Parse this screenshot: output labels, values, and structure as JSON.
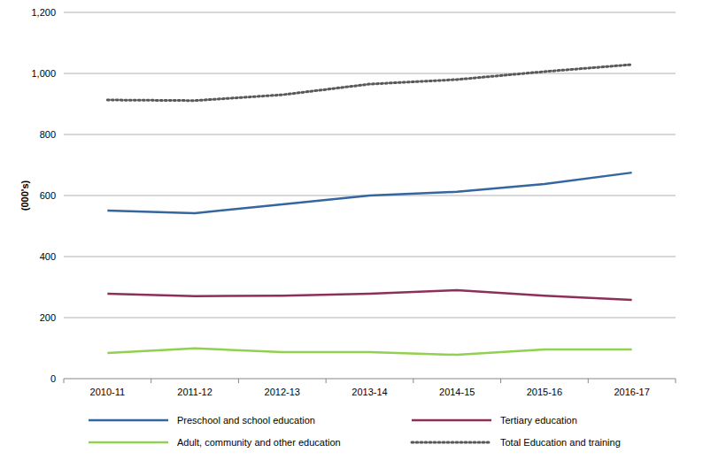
{
  "chart_data": {
    "type": "line",
    "y_label": "(000's)",
    "categories": [
      "2010-11",
      "2011-12",
      "2012-13",
      "2013-14",
      "2014-15",
      "2015-16",
      "2016-17"
    ],
    "series": [
      {
        "name": "Preschool and school education",
        "color": "#3466a0",
        "line_style": "solid",
        "values": [
          551,
          542,
          571,
          600,
          612,
          638,
          675
        ]
      },
      {
        "name": "Tertiary education",
        "color": "#8e2f5a",
        "line_style": "solid",
        "values": [
          278,
          270,
          272,
          278,
          290,
          272,
          258
        ]
      },
      {
        "name": "Adult, community and other education",
        "color": "#92d050",
        "line_style": "solid",
        "values": [
          84,
          99,
          87,
          87,
          78,
          96,
          96
        ]
      },
      {
        "name": "Total Education and training",
        "color": "#595959",
        "line_style": "dotted",
        "values": [
          913,
          911,
          930,
          965,
          980,
          1006,
          1029
        ]
      }
    ],
    "ylim": [
      0,
      1200
    ],
    "yticks": [
      0,
      200,
      400,
      600,
      800,
      {
        "value": 1000,
        "label": "1,000"
      },
      {
        "value": 1200,
        "label": "1,200"
      }
    ],
    "grid": true,
    "legend": "bottom"
  }
}
